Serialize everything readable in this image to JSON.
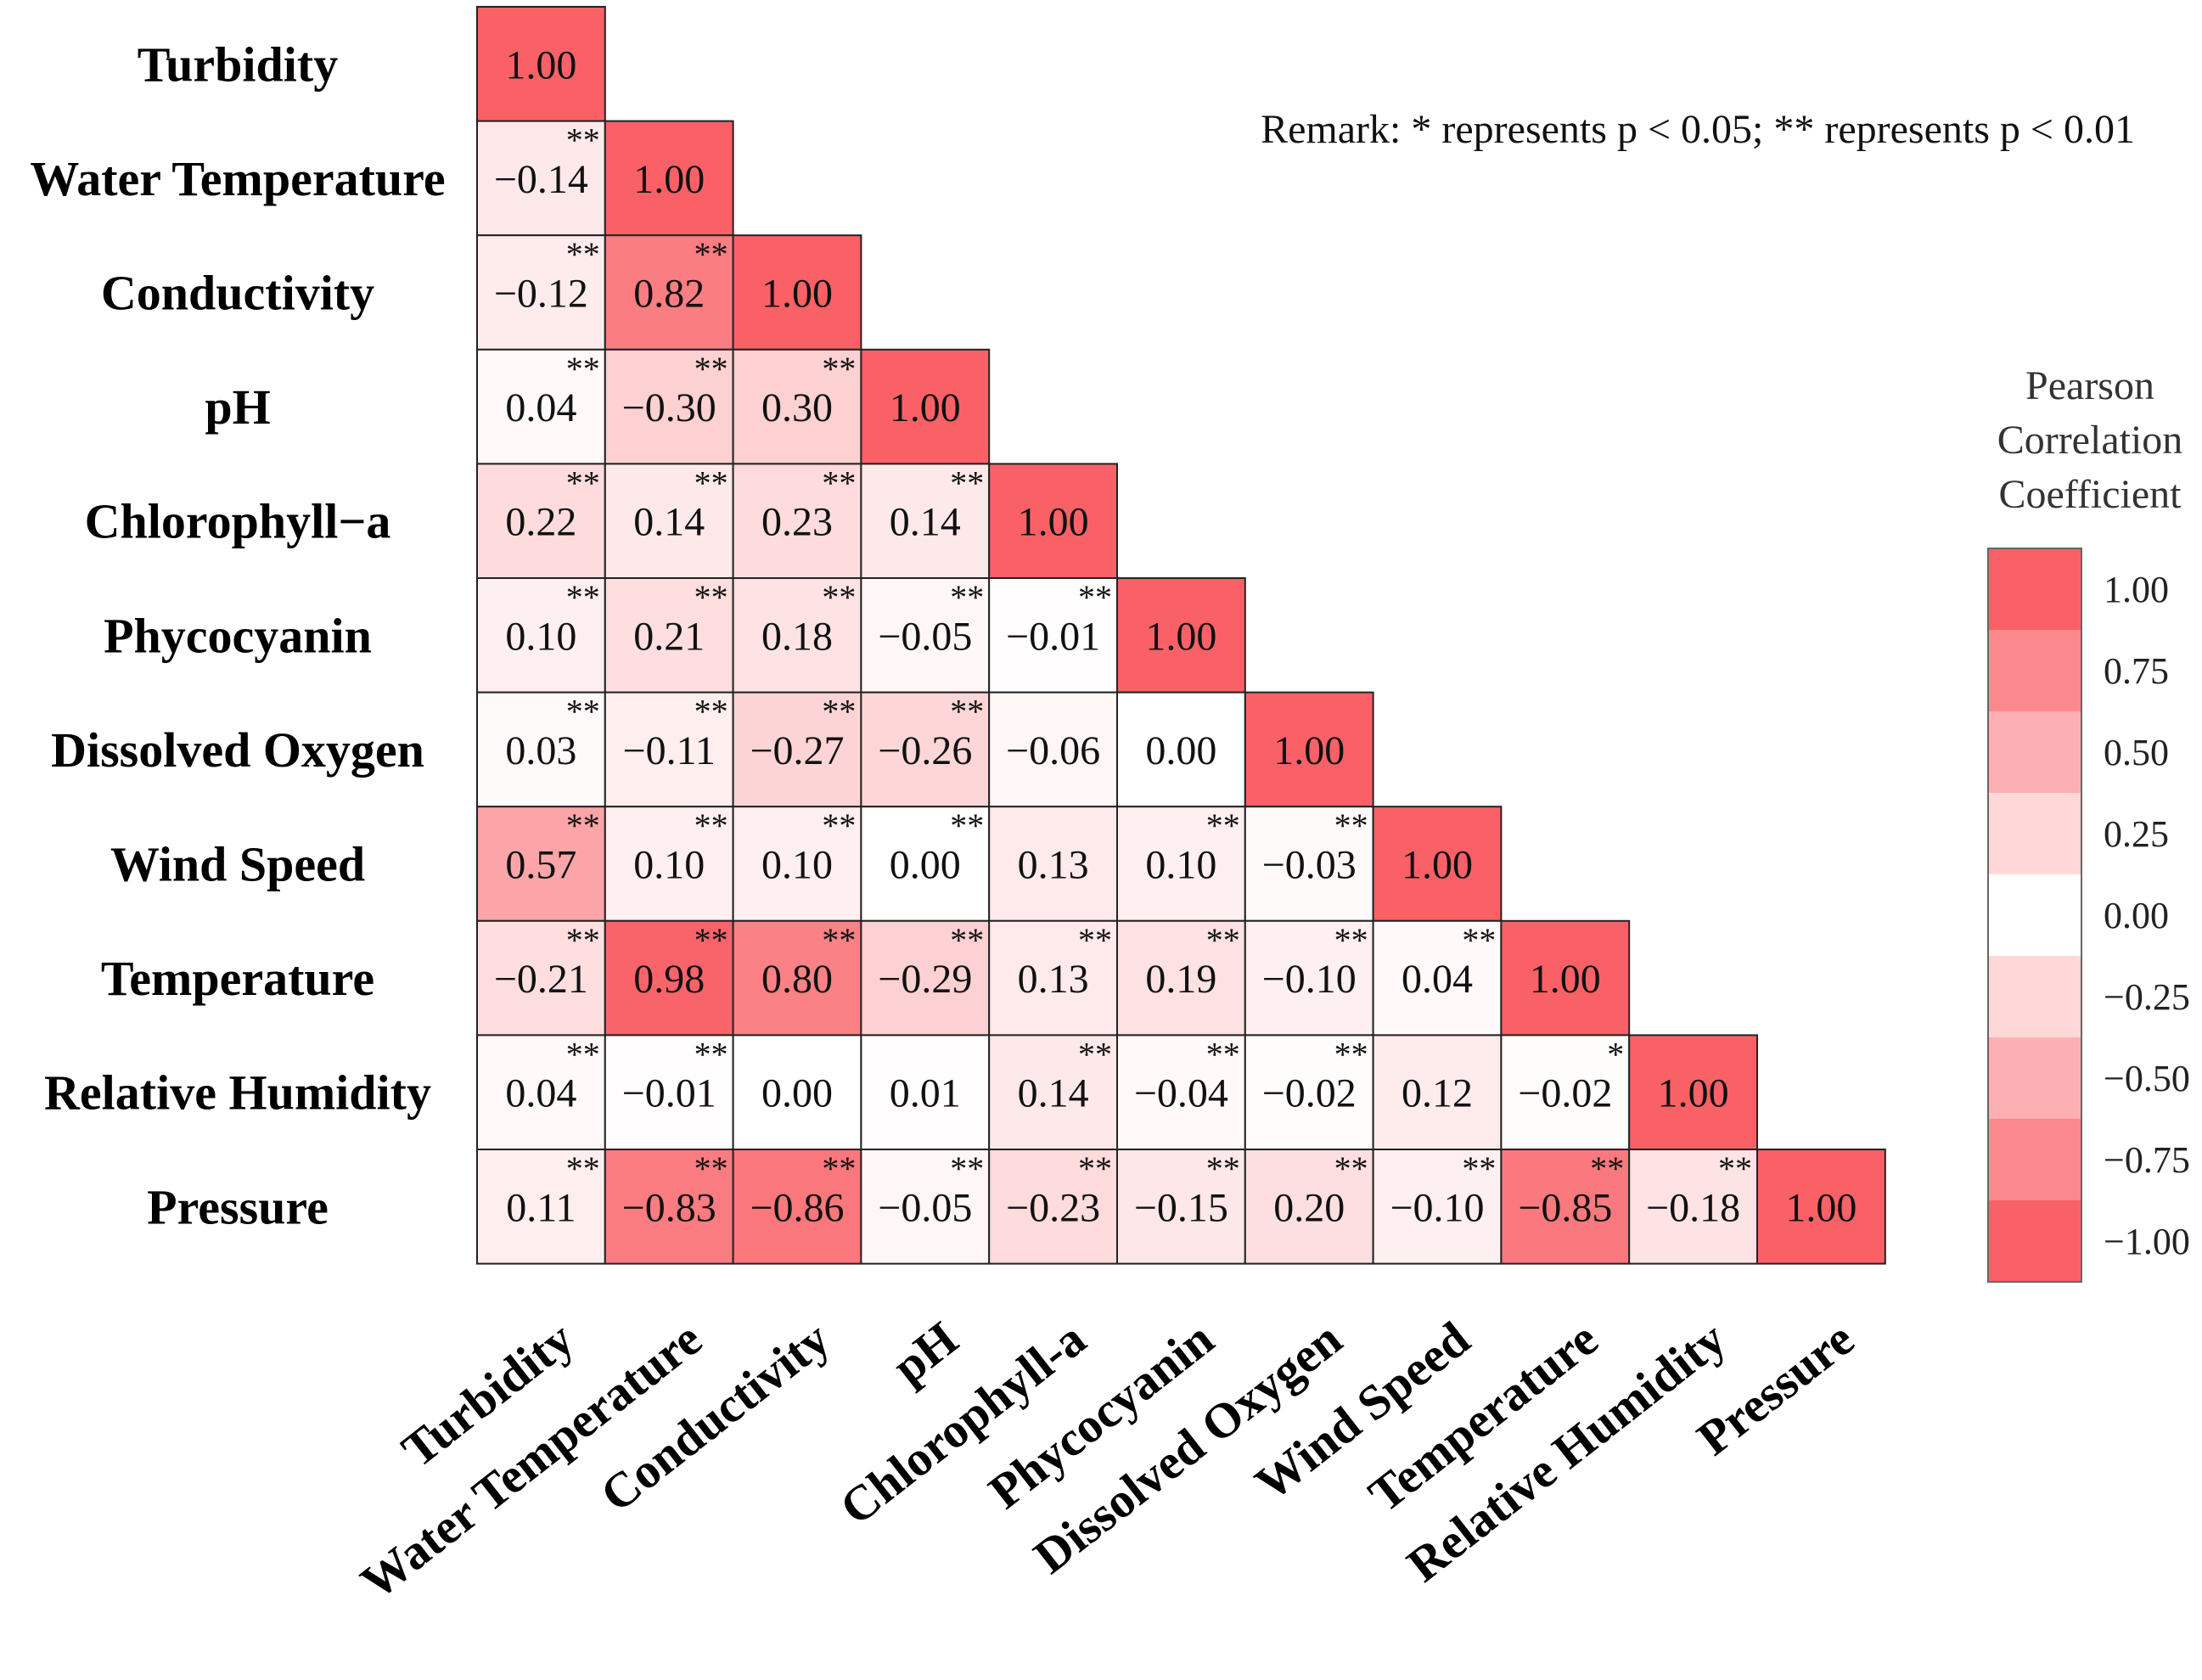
{
  "chart_data": {
    "type": "heatmap",
    "title": "",
    "remark": "Remark: * represents p < 0.05; ** represents p < 0.01",
    "variables": [
      "Turbidity",
      "Water Temperature",
      "Conductivity",
      "pH",
      "Chlorophyll−a",
      "Phycocyanin",
      "Dissolved Oxygen",
      "Wind Speed",
      "Temperature",
      "Relative Humidity",
      "Pressure"
    ],
    "row_labels": [
      "Turbidity",
      "Water Temperature",
      "Conductivity",
      "pH",
      "Chlorophyll−a",
      "Phycocyanin",
      "Dissolved Oxygen",
      "Wind Speed",
      "Temperature",
      "Relative Humidity",
      "Pressure"
    ],
    "col_labels": [
      "Turbidity",
      "Water Temperature",
      "Conductivity",
      "pH",
      "Chlorophyll-a",
      "Phycocyanin",
      "Dissolved Oxygen",
      "Wind Speed",
      "Temperature",
      "Relative Humidity",
      "Pressure"
    ],
    "values": [
      [
        1.0
      ],
      [
        -0.14,
        1.0
      ],
      [
        -0.12,
        0.82,
        1.0
      ],
      [
        0.04,
        -0.3,
        0.3,
        1.0
      ],
      [
        0.22,
        0.14,
        0.23,
        0.14,
        1.0
      ],
      [
        0.1,
        0.21,
        0.18,
        -0.05,
        -0.01,
        1.0
      ],
      [
        0.03,
        -0.11,
        -0.27,
        -0.26,
        -0.06,
        0.0,
        1.0
      ],
      [
        0.57,
        0.1,
        0.1,
        0.0,
        0.13,
        0.1,
        -0.03,
        1.0
      ],
      [
        -0.21,
        0.98,
        0.8,
        -0.29,
        0.13,
        0.19,
        -0.1,
        0.04,
        1.0
      ],
      [
        0.04,
        -0.01,
        0.0,
        0.01,
        0.14,
        -0.04,
        -0.02,
        0.12,
        -0.02,
        1.0
      ],
      [
        0.11,
        -0.83,
        -0.86,
        -0.05,
        -0.23,
        -0.15,
        0.2,
        -0.1,
        -0.85,
        -0.18,
        1.0
      ]
    ],
    "significance": [
      [
        ""
      ],
      [
        "**",
        ""
      ],
      [
        "**",
        "**",
        ""
      ],
      [
        "**",
        "**",
        "**",
        ""
      ],
      [
        "**",
        "**",
        "**",
        "**",
        ""
      ],
      [
        "**",
        "**",
        "**",
        "**",
        "**",
        ""
      ],
      [
        "**",
        "**",
        "**",
        "**",
        "",
        "",
        ""
      ],
      [
        "**",
        "**",
        "**",
        "**",
        "",
        "**",
        "**",
        ""
      ],
      [
        "**",
        "**",
        "**",
        "**",
        "**",
        "**",
        "**",
        "**",
        ""
      ],
      [
        "**",
        "**",
        "",
        "",
        "**",
        "**",
        "**",
        "",
        "*",
        ""
      ],
      [
        "**",
        "**",
        "**",
        "**",
        "**",
        "**",
        "**",
        "**",
        "**",
        "**",
        ""
      ]
    ],
    "legend": {
      "title": [
        "Pearson",
        "Correlation",
        "Coefficient"
      ],
      "ticks": [
        "1.00",
        "0.75",
        "0.50",
        "0.25",
        "0.00",
        "−0.25",
        "−0.50",
        "−0.75",
        "−1.00"
      ],
      "tick_values": [
        1.0,
        0.75,
        0.5,
        0.25,
        0.0,
        -0.25,
        -0.5,
        -0.75,
        -1.0
      ],
      "range": [
        -1.0,
        1.0
      ]
    },
    "colors": {
      "max": "#f96167",
      "zero": "#ffffff",
      "border": "#222222"
    }
  }
}
